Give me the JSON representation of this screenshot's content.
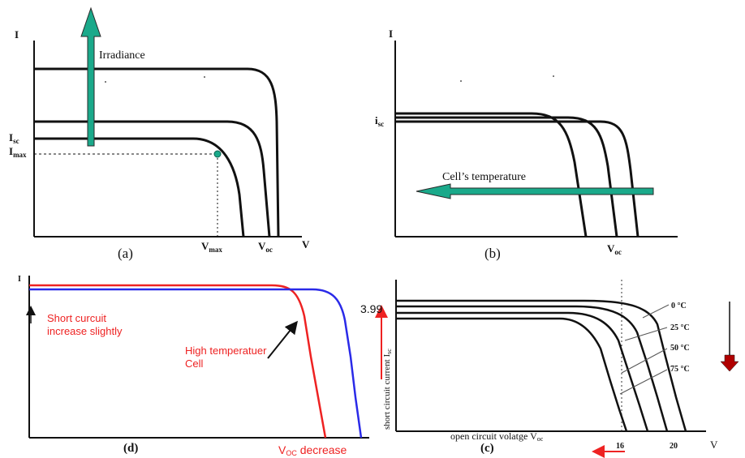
{
  "colors": {
    "ink": "#111111",
    "teal_arrow": "#1aa98a",
    "red": "#ee2222",
    "blue": "#2a2ae8",
    "dark_red": "#b00000"
  },
  "panel_a": {
    "caption": "(a)",
    "y_axis": "I",
    "x_axis": "V",
    "arrow_label": "Irradiance",
    "isc_main": "I",
    "isc_sub": "sc",
    "imax_main": "I",
    "imax_sub": "max",
    "vmax_main": "V",
    "vmax_sub": "max",
    "voc_main": "V",
    "voc_sub": "oc"
  },
  "panel_b": {
    "caption": "(b)",
    "y_axis": "I",
    "isc_main": "i",
    "isc_sub": "sc",
    "arrow_label": "Cell’s temperature",
    "voc_main": "V",
    "voc_sub": "oc"
  },
  "panel_d": {
    "caption": "(d)",
    "y_axis": "I",
    "note_line1": "Short curcuit",
    "note_line2": "increase slightly",
    "high_temp_line1": "High temperatuer",
    "high_temp_line2": "Cell",
    "voc_main": "V",
    "voc_sub": "OC",
    "voc_suffix": " decrease"
  },
  "panel_c": {
    "caption": "(c)",
    "y_value": "3.99",
    "y_axis_label": "short circuit current I",
    "y_axis_sub": "sc",
    "x_axis_label": "open circuit volatge V",
    "x_axis_sub": "oc",
    "x_axis": "V",
    "tick_16": "16",
    "tick_20": "20",
    "temps": [
      "0 °C",
      "25 °C",
      "50 °C",
      "75 °C"
    ]
  }
}
